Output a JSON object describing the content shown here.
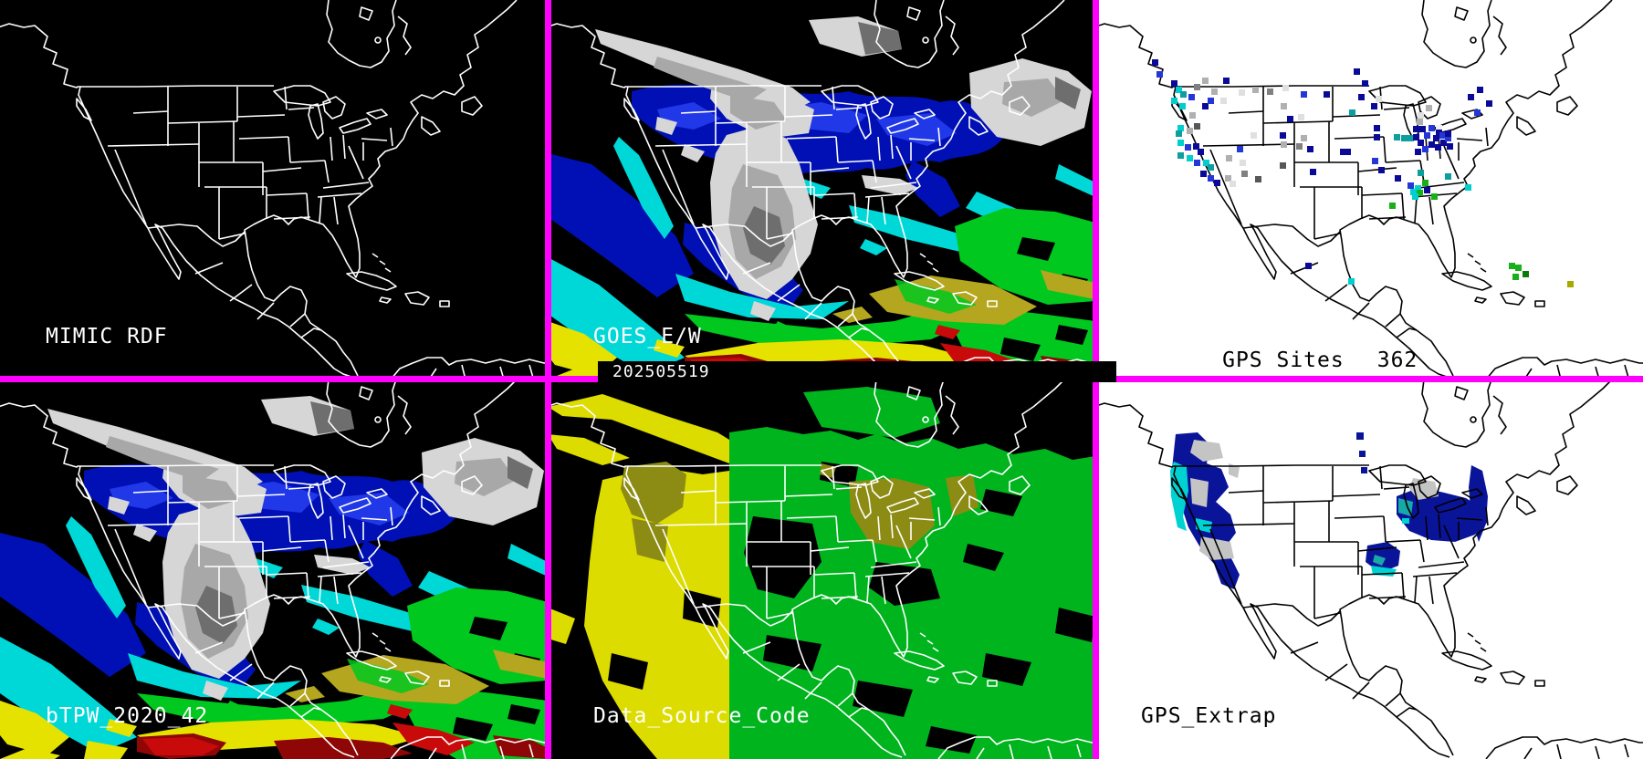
{
  "panels": {
    "mimic": {
      "label": "MIMIC RDF"
    },
    "goes": {
      "label": "GOES_E/W",
      "timestamp": "202505519"
    },
    "gps_sites": {
      "label": "GPS Sites",
      "count": "362",
      "palette": {
        "nv": "#0A0A96",
        "bl": "#2436D8",
        "cy": "#00CFCF",
        "tl": "#0E9E9E",
        "gn": "#18B018",
        "dg": "#0A7A0A",
        "ol": "#A8A800",
        "g1": "#E0E0E0",
        "g2": "#B0B0B0",
        "g3": "#808080",
        "g4": "#575757",
        "wh": "#F2F2F2"
      },
      "dots": [
        [
          62,
          65,
          "nv"
        ],
        [
          67,
          78,
          "bl"
        ],
        [
          83,
          88,
          "nv"
        ],
        [
          88,
          95,
          "cy"
        ],
        [
          93,
          100,
          "tl"
        ],
        [
          83,
          107,
          "cy"
        ],
        [
          92,
          113,
          "cy"
        ],
        [
          102,
          103,
          "bl"
        ],
        [
          108,
          92,
          "g3"
        ],
        [
          117,
          85,
          "g2"
        ],
        [
          127,
          97,
          "g2"
        ],
        [
          140,
          85,
          "nv"
        ],
        [
          117,
          113,
          "nv"
        ],
        [
          103,
          123,
          "g2"
        ],
        [
          123,
          107,
          "bl"
        ],
        [
          137,
          107,
          "g1"
        ],
        [
          90,
          137,
          "cy"
        ],
        [
          88,
          143,
          "tl"
        ],
        [
          100,
          140,
          "g2"
        ],
        [
          108,
          135,
          "g4"
        ],
        [
          90,
          153,
          "cy"
        ],
        [
          98,
          158,
          "bl"
        ],
        [
          107,
          157,
          "nv"
        ],
        [
          112,
          163,
          "nv"
        ],
        [
          90,
          167,
          "tl"
        ],
        [
          100,
          170,
          "cy"
        ],
        [
          108,
          175,
          "bl"
        ],
        [
          118,
          175,
          "cy"
        ],
        [
          123,
          180,
          "tl"
        ],
        [
          115,
          187,
          "nv"
        ],
        [
          123,
          192,
          "bl"
        ],
        [
          130,
          197,
          "nv"
        ],
        [
          142,
          192,
          "g2"
        ],
        [
          147,
          198,
          "g1"
        ],
        [
          160,
          187,
          "g3"
        ],
        [
          155,
          160,
          "bl"
        ],
        [
          157,
          98,
          "g1"
        ],
        [
          172,
          95,
          "g2"
        ],
        [
          188,
          97,
          "g3"
        ],
        [
          205,
          93,
          "g1"
        ],
        [
          222,
          125,
          "g1"
        ],
        [
          203,
          113,
          "g2"
        ],
        [
          170,
          145,
          "g1"
        ],
        [
          203,
          155,
          "g2"
        ],
        [
          220,
          157,
          "g3"
        ],
        [
          202,
          178,
          "g4"
        ],
        [
          175,
          193,
          "g4"
        ],
        [
          158,
          175,
          "g1"
        ],
        [
          143,
          170,
          "g2"
        ],
        [
          225,
          100,
          "bl"
        ],
        [
          210,
          127,
          "nv"
        ],
        [
          202,
          145,
          "nv"
        ],
        [
          225,
          148,
          "g2"
        ],
        [
          250,
          100,
          "nv"
        ],
        [
          235,
          185,
          "nv"
        ],
        [
          232,
          160,
          "nv"
        ],
        [
          268,
          163,
          "nv"
        ],
        [
          283,
          75,
          "nv"
        ],
        [
          292,
          88,
          "nv"
        ],
        [
          288,
          103,
          "nv"
        ],
        [
          307,
          105,
          "g1"
        ],
        [
          278,
          120,
          "tl"
        ],
        [
          302,
          113,
          "nv"
        ],
        [
          305,
          137,
          "nv"
        ],
        [
          305,
          147,
          "nv"
        ],
        [
          342,
          148,
          "tl"
        ],
        [
          327,
          147,
          "tl"
        ],
        [
          335,
          148,
          "tl"
        ],
        [
          352,
          130,
          "g2"
        ],
        [
          353,
          123,
          "g1"
        ],
        [
          362,
          115,
          "g2"
        ],
        [
          373,
          137,
          "wh"
        ],
        [
          408,
          103,
          "nv"
        ],
        [
          418,
          95,
          "nv"
        ],
        [
          428,
          110,
          "nv"
        ],
        [
          415,
          120,
          "bl"
        ],
        [
          348,
          138,
          "nv"
        ],
        [
          355,
          138,
          "nv"
        ],
        [
          365,
          137,
          "bl"
        ],
        [
          373,
          142,
          "nv"
        ],
        [
          360,
          145,
          "bl"
        ],
        [
          348,
          147,
          "nv"
        ],
        [
          370,
          148,
          "nv"
        ],
        [
          377,
          145,
          "bl"
        ],
        [
          353,
          153,
          "nv"
        ],
        [
          365,
          155,
          "nv"
        ],
        [
          378,
          153,
          "nv"
        ],
        [
          350,
          163,
          "nv"
        ],
        [
          358,
          160,
          "bl"
        ],
        [
          372,
          158,
          "nv"
        ],
        [
          383,
          148,
          "bl"
        ],
        [
          385,
          157,
          "nv"
        ],
        [
          383,
          143,
          "nv"
        ],
        [
          273,
          163,
          "nv"
        ],
        [
          303,
          173,
          "bl"
        ],
        [
          310,
          183,
          "nv"
        ],
        [
          328,
          192,
          "nv"
        ],
        [
          342,
          200,
          "bl"
        ],
        [
          353,
          186,
          "tl"
        ],
        [
          358,
          197,
          "gn"
        ],
        [
          350,
          203,
          "cy"
        ],
        [
          345,
          207,
          "cy"
        ],
        [
          352,
          208,
          "gn"
        ],
        [
          360,
          205,
          "nv"
        ],
        [
          383,
          190,
          "tl"
        ],
        [
          347,
          212,
          "cy"
        ],
        [
          368,
          212,
          "gn"
        ],
        [
          405,
          202,
          "cy"
        ],
        [
          322,
          222,
          "gn"
        ],
        [
          230,
          288,
          "nv"
        ],
        [
          277,
          305,
          "cy"
        ],
        [
          453,
          288,
          "gn"
        ],
        [
          460,
          290,
          "gn"
        ],
        [
          468,
          297,
          "dg"
        ],
        [
          457,
          300,
          "gn"
        ],
        [
          517,
          308,
          "ol"
        ]
      ]
    },
    "btpw": {
      "label": "bTPW_2020_42"
    },
    "dsc": {
      "label": "Data_Source_Code"
    },
    "gps_extrap": {
      "label": "GPS_Extrap"
    }
  },
  "colors": {
    "separator": "#FF00FF",
    "tpw_blue": "#0010B4",
    "tpw_blue_bright": "#2038E8",
    "tpw_cyan": "#00D8D8",
    "tpw_green": "#00C81E",
    "tpw_olive": "#B4A61E",
    "tpw_yellow": "#E6E200",
    "tpw_red": "#C80A0A",
    "tpw_red_dark": "#8F0606",
    "cloud_light": "#D6D6D6",
    "cloud_mid": "#A8A8A8",
    "cloud_dark": "#6E6E6E",
    "dsc_yellow": "#DCDC00",
    "dsc_green": "#00B41E",
    "dsc_olive": "#8C8C14",
    "outline_dark_panels": "#FFFFFF",
    "outline_light_panels": "#000000"
  }
}
